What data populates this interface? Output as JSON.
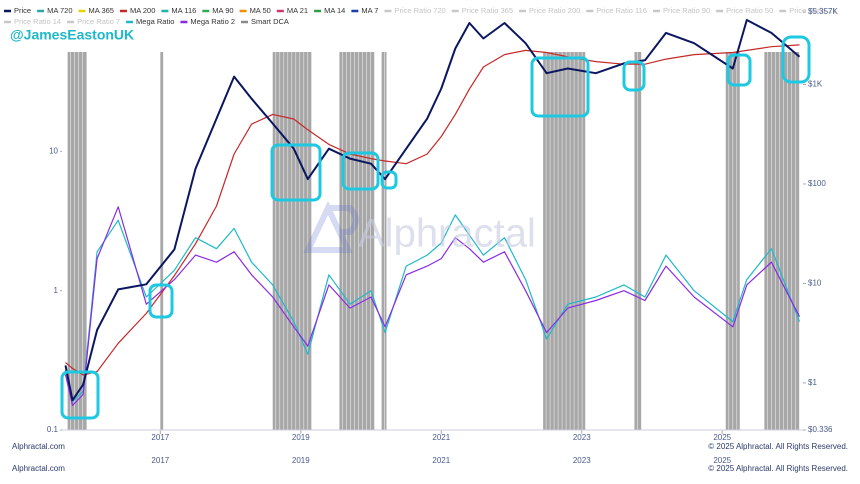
{
  "chart_data": {
    "type": "line",
    "handle": "@JamesEastonUK",
    "watermark": "Alphractal",
    "footer_left": "Alphractal.com",
    "footer_right": "© 2025 Alphractal. All Rights Reserved.",
    "log_scale": true,
    "x": [
      2015.65,
      2015.75,
      2015.9,
      2016.1,
      2016.4,
      2016.8,
      2017.2,
      2017.5,
      2017.8,
      2018.05,
      2018.3,
      2018.6,
      2018.9,
      2019.1,
      2019.4,
      2019.7,
      2020.0,
      2020.2,
      2020.5,
      2020.8,
      2021.0,
      2021.2,
      2021.4,
      2021.6,
      2021.9,
      2022.2,
      2022.5,
      2022.8,
      2023.2,
      2023.6,
      2023.9,
      2024.2,
      2024.6,
      2025.15,
      2025.35,
      2025.7,
      2026.1
    ],
    "xlim": [
      2015.6,
      2026.15
    ],
    "xticks": [
      2017,
      2019,
      2021,
      2023,
      2025
    ],
    "ylim": [
      0.1,
      100
    ],
    "yticks": [
      0.1,
      1,
      10
    ],
    "y2lim": [
      0.336,
      5357
    ],
    "y2ticks": [
      {
        "value": 0.336,
        "label": "$0.336"
      },
      {
        "value": 1,
        "label": "$1"
      },
      {
        "value": 10,
        "label": "$10"
      },
      {
        "value": 100,
        "label": "$100"
      },
      {
        "value": 1000,
        "label": "$1K"
      },
      {
        "value": 5357,
        "label": "$5.357K"
      }
    ],
    "series": [
      {
        "name": "Price",
        "color": "#0b1660",
        "axis": "y2",
        "values": [
          1.5,
          0.67,
          0.96,
          3.4,
          8.7,
          9.8,
          22,
          142,
          454,
          1200,
          720,
          405,
          226,
          112,
          226,
          180,
          160,
          112,
          226,
          454,
          912,
          2300,
          4150,
          2900,
          4150,
          2600,
          1300,
          1450,
          1300,
          1630,
          1750,
          3300,
          2600,
          1450,
          4450,
          3300,
          1900
        ]
      },
      {
        "name": "MA 720",
        "color": "#2aa7a0"
      },
      {
        "name": "MA 365",
        "color": "#e6d200"
      },
      {
        "name": "MA 200",
        "color": "#c62828",
        "axis": "y2",
        "values": [
          1.6,
          1.4,
          1.2,
          1.3,
          2.5,
          5,
          12,
          25,
          60,
          200,
          400,
          500,
          450,
          350,
          250,
          200,
          180,
          170,
          160,
          200,
          300,
          500,
          900,
          1500,
          2000,
          2200,
          2100,
          1900,
          1700,
          1600,
          1600,
          1800,
          2000,
          2100,
          2200,
          2400,
          2500
        ]
      },
      {
        "name": "MA 116",
        "color": "#1fb5a5"
      },
      {
        "name": "MA 90",
        "color": "#33a852"
      },
      {
        "name": "MA 50",
        "color": "#f08c00"
      },
      {
        "name": "MA 21",
        "color": "#d6336c"
      },
      {
        "name": "MA 14",
        "color": "#2f9e44"
      },
      {
        "name": "MA 7",
        "color": "#1c3faa"
      },
      {
        "name": "Price Ratio 720",
        "color": "#c8c8c8",
        "hidden": true
      },
      {
        "name": "Price Ratio 365",
        "color": "#c8c8c8",
        "hidden": true
      },
      {
        "name": "Price Ratio 200",
        "color": "#c8c8c8",
        "hidden": true
      },
      {
        "name": "Price Ratio 116",
        "color": "#c8c8c8",
        "hidden": true
      },
      {
        "name": "Price Ratio 90",
        "color": "#c8c8c8",
        "hidden": true
      },
      {
        "name": "Price Ratio 50",
        "color": "#c8c8c8",
        "hidden": true
      },
      {
        "name": "Price Ratio 21",
        "color": "#c8c8c8",
        "hidden": true
      },
      {
        "name": "Price Ratio 14",
        "color": "#c8c8c8",
        "hidden": true
      },
      {
        "name": "Price Ratio 7",
        "color": "#c8c8c8",
        "hidden": true
      },
      {
        "name": "Mega Ratio",
        "color": "#1fb8c9",
        "values": [
          0.27,
          0.16,
          0.19,
          1.9,
          3.2,
          0.9,
          1.4,
          2.4,
          2.0,
          2.8,
          1.6,
          1.1,
          0.6,
          0.35,
          1.3,
          0.8,
          1.0,
          0.5,
          1.5,
          1.8,
          2.2,
          3.5,
          2.5,
          1.8,
          2.4,
          1.2,
          0.45,
          0.8,
          0.9,
          1.1,
          0.9,
          1.8,
          1.0,
          0.6,
          1.2,
          2.0,
          0.6
        ]
      },
      {
        "name": "Mega Ratio 2",
        "color": "#8a2be2",
        "values": [
          0.25,
          0.15,
          0.18,
          1.7,
          4.0,
          0.8,
          1.2,
          1.8,
          1.6,
          1.9,
          1.3,
          0.9,
          0.55,
          0.4,
          1.1,
          0.75,
          0.9,
          0.55,
          1.3,
          1.5,
          1.7,
          2.4,
          2.0,
          1.6,
          1.9,
          1.0,
          0.5,
          0.75,
          0.85,
          1.0,
          0.85,
          1.5,
          0.9,
          0.55,
          1.1,
          1.6,
          0.65
        ]
      },
      {
        "name": "Smart DCA",
        "color": "#8a8a8a"
      }
    ],
    "smart_dca_ranges": [
      [
        2015.68,
        2015.95
      ],
      [
        2017.0,
        2017.04
      ],
      [
        2018.6,
        2019.15
      ],
      [
        2019.55,
        2020.05
      ],
      [
        2020.15,
        2020.22
      ],
      [
        2022.45,
        2023.05
      ],
      [
        2023.75,
        2023.85
      ],
      [
        2025.05,
        2025.25
      ],
      [
        2025.6,
        2026.1
      ]
    ]
  }
}
